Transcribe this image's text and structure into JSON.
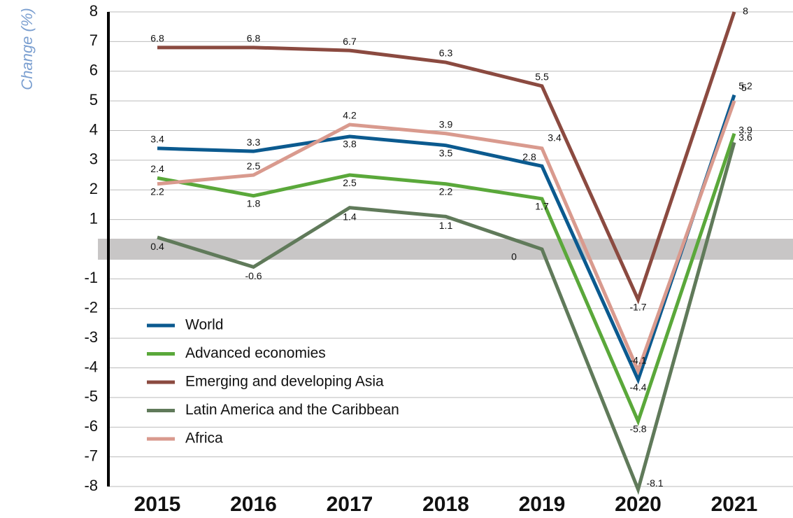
{
  "chart_data": {
    "type": "line",
    "y_label": "Change (%)",
    "categories": [
      "2015",
      "2016",
      "2017",
      "2018",
      "2019",
      "2020",
      "2021"
    ],
    "series": [
      {
        "name": "World",
        "color": "#0b5a8f",
        "values": [
          3.4,
          3.3,
          3.8,
          3.5,
          2.8,
          -4.4,
          5.2
        ]
      },
      {
        "name": "Advanced economies",
        "color": "#5aa83a",
        "values": [
          2.4,
          1.8,
          2.5,
          2.2,
          1.7,
          -5.8,
          3.9
        ]
      },
      {
        "name": "Emerging and developing Asia",
        "color": "#8b4a40",
        "values": [
          6.8,
          6.8,
          6.7,
          6.3,
          5.5,
          -1.7,
          8
        ]
      },
      {
        "name": "Latin America and the Caribbean",
        "color": "#607a5a",
        "values": [
          0.4,
          -0.6,
          1.4,
          1.1,
          0,
          -8.1,
          3.6
        ]
      },
      {
        "name": "Africa",
        "color": "#d99a8e",
        "values": [
          2.2,
          2.5,
          4.2,
          3.9,
          3.4,
          -4.1,
          5
        ]
      }
    ],
    "ylim": [
      -8,
      8
    ],
    "yticks": [
      -8,
      -7,
      -6,
      -5,
      -4,
      -3,
      -2,
      -1,
      1,
      2,
      3,
      4,
      5,
      6,
      7,
      8
    ],
    "grid": true
  }
}
